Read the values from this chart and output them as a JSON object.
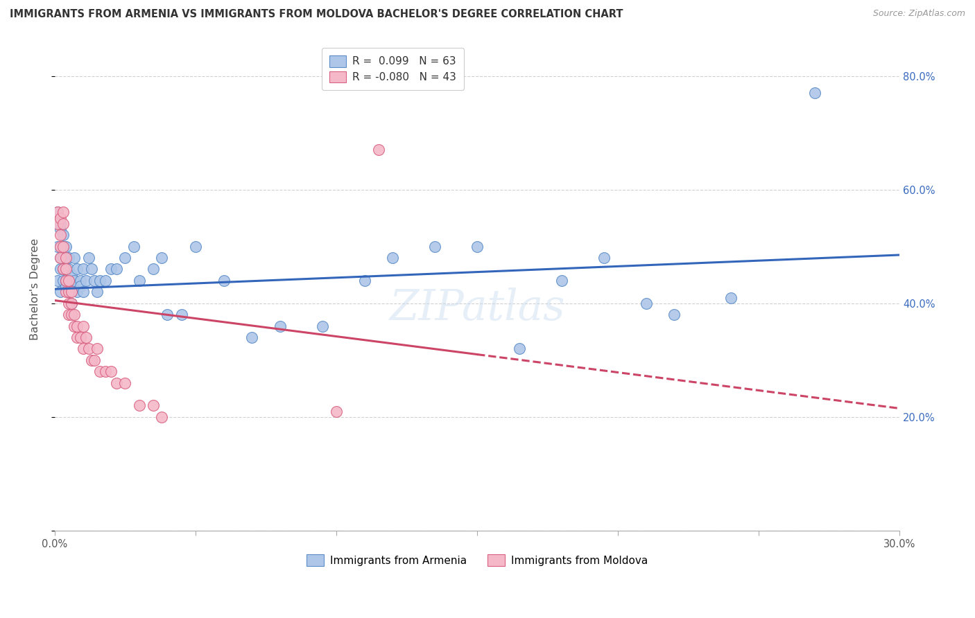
{
  "title": "IMMIGRANTS FROM ARMENIA VS IMMIGRANTS FROM MOLDOVA BACHELOR'S DEGREE CORRELATION CHART",
  "source": "Source: ZipAtlas.com",
  "ylabel": "Bachelor's Degree",
  "xlim": [
    0.0,
    0.3
  ],
  "ylim": [
    0.0,
    0.85
  ],
  "xtick_positions": [
    0.0,
    0.05,
    0.1,
    0.15,
    0.2,
    0.25,
    0.3
  ],
  "xtick_labels": [
    "0.0%",
    "",
    "",
    "",
    "",
    "",
    "30.0%"
  ],
  "ytick_positions": [
    0.0,
    0.2,
    0.4,
    0.6,
    0.8
  ],
  "ytick_labels_right": [
    "",
    "20.0%",
    "40.0%",
    "60.0%",
    "80.0%"
  ],
  "r_armenia": 0.099,
  "n_armenia": 63,
  "r_moldova": -0.08,
  "n_moldova": 43,
  "color_armenia_fill": "#aec6e8",
  "color_armenia_edge": "#5b8dc8",
  "color_moldova_fill": "#f4b8c8",
  "color_moldova_edge": "#d96080",
  "color_line_armenia": "#3366bb",
  "color_line_moldova": "#cc4466",
  "color_grid": "#cccccc",
  "watermark": "ZIPatlas",
  "legend_title_armenia": "Immigrants from Armenia",
  "legend_title_moldova": "Immigrants from Moldova",
  "armenia_x": [
    0.001,
    0.001,
    0.001,
    0.002,
    0.002,
    0.002,
    0.002,
    0.002,
    0.003,
    0.003,
    0.003,
    0.003,
    0.003,
    0.004,
    0.004,
    0.004,
    0.004,
    0.005,
    0.005,
    0.005,
    0.006,
    0.006,
    0.006,
    0.007,
    0.007,
    0.008,
    0.008,
    0.009,
    0.009,
    0.01,
    0.01,
    0.011,
    0.012,
    0.013,
    0.014,
    0.015,
    0.016,
    0.018,
    0.02,
    0.022,
    0.025,
    0.028,
    0.03,
    0.035,
    0.038,
    0.04,
    0.045,
    0.05,
    0.06,
    0.07,
    0.08,
    0.095,
    0.11,
    0.12,
    0.135,
    0.15,
    0.165,
    0.18,
    0.195,
    0.21,
    0.22,
    0.24,
    0.27
  ],
  "armenia_y": [
    0.44,
    0.5,
    0.56,
    0.42,
    0.48,
    0.53,
    0.46,
    0.54,
    0.44,
    0.52,
    0.48,
    0.46,
    0.5,
    0.43,
    0.46,
    0.5,
    0.44,
    0.42,
    0.46,
    0.48,
    0.44,
    0.4,
    0.45,
    0.44,
    0.48,
    0.42,
    0.46,
    0.44,
    0.43,
    0.42,
    0.46,
    0.44,
    0.48,
    0.46,
    0.44,
    0.42,
    0.44,
    0.44,
    0.46,
    0.46,
    0.48,
    0.5,
    0.44,
    0.46,
    0.48,
    0.38,
    0.38,
    0.5,
    0.44,
    0.34,
    0.36,
    0.36,
    0.44,
    0.48,
    0.5,
    0.5,
    0.32,
    0.44,
    0.48,
    0.4,
    0.38,
    0.41,
    0.77
  ],
  "moldova_x": [
    0.001,
    0.001,
    0.002,
    0.002,
    0.002,
    0.002,
    0.003,
    0.003,
    0.003,
    0.003,
    0.004,
    0.004,
    0.004,
    0.004,
    0.005,
    0.005,
    0.005,
    0.005,
    0.006,
    0.006,
    0.006,
    0.007,
    0.007,
    0.008,
    0.008,
    0.009,
    0.01,
    0.01,
    0.011,
    0.012,
    0.013,
    0.014,
    0.015,
    0.016,
    0.018,
    0.02,
    0.022,
    0.025,
    0.03,
    0.035,
    0.038,
    0.1,
    0.115
  ],
  "moldova_y": [
    0.56,
    0.54,
    0.52,
    0.55,
    0.5,
    0.48,
    0.56,
    0.54,
    0.5,
    0.46,
    0.44,
    0.48,
    0.42,
    0.46,
    0.44,
    0.42,
    0.4,
    0.38,
    0.42,
    0.4,
    0.38,
    0.38,
    0.36,
    0.34,
    0.36,
    0.34,
    0.36,
    0.32,
    0.34,
    0.32,
    0.3,
    0.3,
    0.32,
    0.28,
    0.28,
    0.28,
    0.26,
    0.26,
    0.22,
    0.22,
    0.2,
    0.21,
    0.67
  ],
  "moldova_solid_cutoff": 0.15,
  "armenia_line_x0": 0.0,
  "armenia_line_y0": 0.425,
  "armenia_line_x1": 0.3,
  "armenia_line_y1": 0.485,
  "moldova_line_x0": 0.0,
  "moldova_line_y0": 0.405,
  "moldova_line_x1": 0.3,
  "moldova_line_y1": 0.215
}
